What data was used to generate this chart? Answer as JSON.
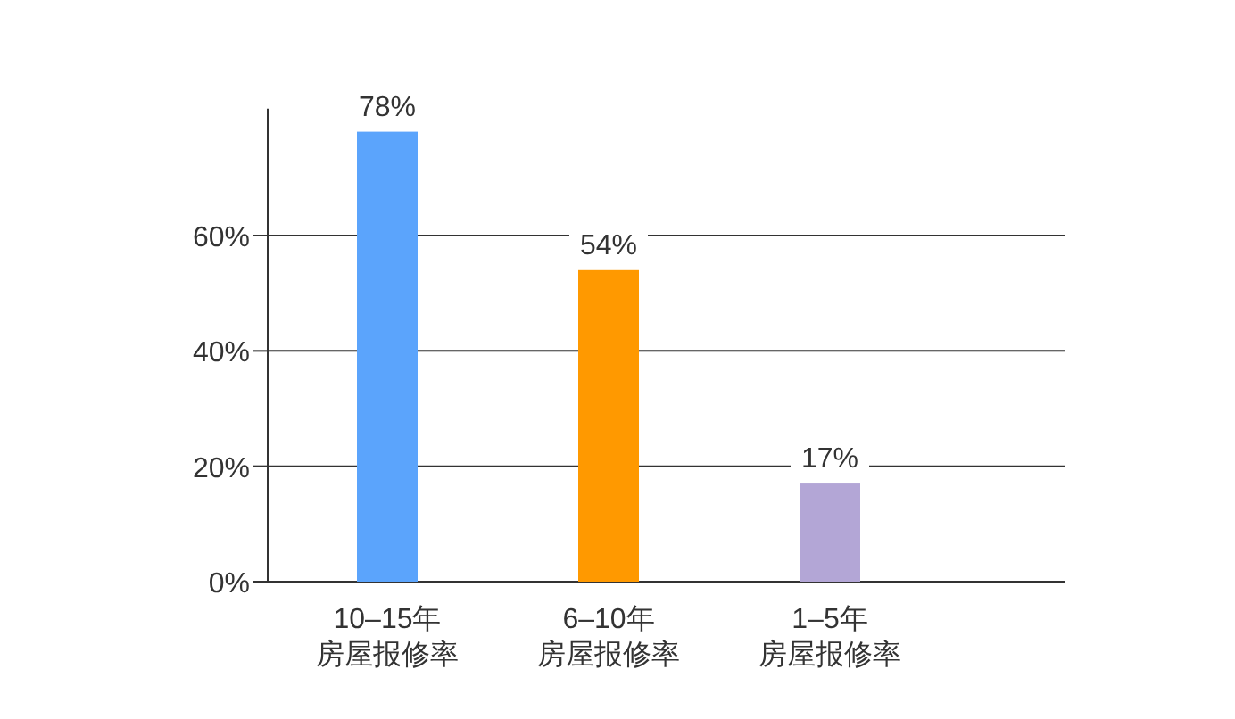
{
  "chart_data": {
    "type": "bar",
    "categories": [
      "10–15年房屋报修率",
      "6–10年房屋报修率",
      "1–5年房屋报修率"
    ],
    "values": [
      78,
      54,
      17
    ],
    "colors": [
      "#5ba4fc",
      "#ff9900",
      "#b3a6d6"
    ],
    "ylim": [
      0,
      82
    ],
    "yticks": [
      {
        "value": 0,
        "label": "0%"
      },
      {
        "value": 20,
        "label": "20%"
      },
      {
        "value": 40,
        "label": "40%"
      },
      {
        "value": 60,
        "label": "60%"
      }
    ],
    "grid": "y",
    "value_labels": [
      "78%",
      "54%",
      "17%"
    ]
  }
}
